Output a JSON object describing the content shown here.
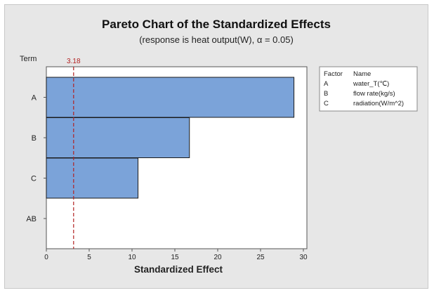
{
  "chart_data": {
    "type": "bar",
    "orientation": "horizontal",
    "title": "Pareto Chart of the Standardized Effects",
    "subtitle": "(response is heat output(W), α = 0.05)",
    "xlabel": "Standardized Effect",
    "ylabel": "Term",
    "xlim": [
      0,
      30
    ],
    "xticks": [
      "0",
      "5",
      "10",
      "15",
      "20",
      "25",
      "30"
    ],
    "categories": [
      "A",
      "B",
      "C",
      "AB"
    ],
    "values": [
      28.9,
      16.7,
      10.7,
      0.0
    ],
    "reference_line": {
      "value": 3.18,
      "label": "3.18"
    },
    "colors": {
      "bar": "#7ba3d9",
      "bar_stroke": "#1a1a1a",
      "reference": "#b22222"
    },
    "legend": {
      "headers": [
        "Factor",
        "Name"
      ],
      "rows": [
        {
          "factor": "A",
          "name": "water_T(℃)"
        },
        {
          "factor": "B",
          "name": "flow rate(kg/s)"
        },
        {
          "factor": "C",
          "name": "radiation(W/m^2)"
        }
      ]
    }
  }
}
